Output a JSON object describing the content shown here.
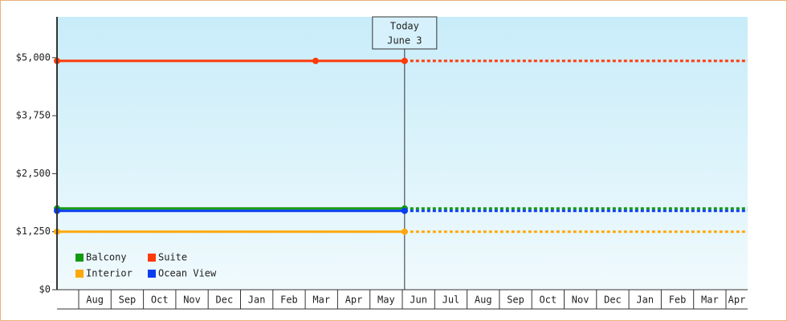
{
  "chart_data": {
    "type": "line",
    "x_unit_note_free": null,
    "xlim": [
      0.33,
      21.67
    ],
    "xticks": [
      {
        "value": 0,
        "label": null
      },
      {
        "value": 1,
        "label": "Aug"
      },
      {
        "value": 2,
        "label": "Sep"
      },
      {
        "value": 3,
        "label": "Oct"
      },
      {
        "value": 4,
        "label": "Nov"
      },
      {
        "value": 5,
        "label": "Dec"
      },
      {
        "value": 6,
        "label": "Jan"
      },
      {
        "value": 7,
        "label": "Feb"
      },
      {
        "value": 8,
        "label": "Mar"
      },
      {
        "value": 9,
        "label": "Apr"
      },
      {
        "value": 10,
        "label": "May"
      },
      {
        "value": 11,
        "label": "Jun"
      },
      {
        "value": 12,
        "label": "Jul"
      },
      {
        "value": 13,
        "label": "Aug"
      },
      {
        "value": 14,
        "label": "Sep"
      },
      {
        "value": 15,
        "label": "Oct"
      },
      {
        "value": 16,
        "label": "Nov"
      },
      {
        "value": 17,
        "label": "Dec"
      },
      {
        "value": 18,
        "label": "Jan"
      },
      {
        "value": 19,
        "label": "Feb"
      },
      {
        "value": 20,
        "label": "Mar"
      },
      {
        "value": 21,
        "label": "Apr"
      }
    ],
    "ylim": [
      0,
      5880
    ],
    "yticks": [
      {
        "value": 0,
        "label": "$0"
      },
      {
        "value": 1250,
        "label": "$1,250"
      },
      {
        "value": 2500,
        "label": "$2,500"
      },
      {
        "value": 3750,
        "label": "$3,750"
      },
      {
        "value": 5000,
        "label": "$5,000"
      }
    ],
    "today": {
      "x": 11.07,
      "label": [
        "Today",
        "June 3"
      ]
    },
    "legend": "lower left",
    "series": [
      {
        "name": "Balcony",
        "color": "#139a13",
        "x": [
          0.33,
          11.07
        ],
        "values": [
          1750,
          1750
        ]
      },
      {
        "name": "Suite",
        "color": "#ff3a0a",
        "x": [
          0.33,
          8.32,
          11.07
        ],
        "values": [
          4930,
          4930,
          4930
        ]
      },
      {
        "name": "Interior",
        "color": "#ffa80c",
        "x": [
          0.33,
          11.07
        ],
        "values": [
          1250,
          1250
        ]
      },
      {
        "name": "Ocean View",
        "color": "#0a3cf0",
        "x": [
          0.33,
          11.07
        ],
        "values": [
          1700,
          1700
        ]
      }
    ]
  }
}
